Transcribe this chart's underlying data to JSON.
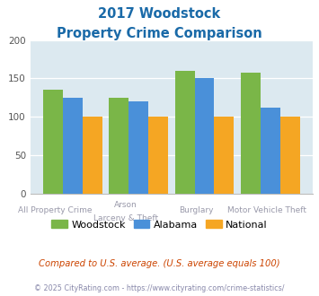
{
  "title_line1": "2017 Woodstock",
  "title_line2": "Property Crime Comparison",
  "woodstock": [
    135,
    125,
    160,
    158
  ],
  "alabama": [
    125,
    120,
    151,
    112
  ],
  "national": [
    100,
    100,
    100,
    100
  ],
  "colors": {
    "woodstock": "#7ab648",
    "alabama": "#4a90d9",
    "national": "#f5a623"
  },
  "ylim": [
    0,
    200
  ],
  "yticks": [
    0,
    50,
    100,
    150,
    200
  ],
  "bg_color": "#dce9f0",
  "title_color": "#1a6aa8",
  "cat_top": [
    "All Property Crime",
    "Arson",
    "Burglary",
    "Motor Vehicle Theft"
  ],
  "cat_bottom": [
    "",
    "Larceny & Theft",
    "",
    ""
  ],
  "label_color": "#9999aa",
  "footer_text": "Compared to U.S. average. (U.S. average equals 100)",
  "footer_color": "#cc4400",
  "copyright_text": "© 2025 CityRating.com - https://www.cityrating.com/crime-statistics/",
  "copyright_color": "#8888aa"
}
